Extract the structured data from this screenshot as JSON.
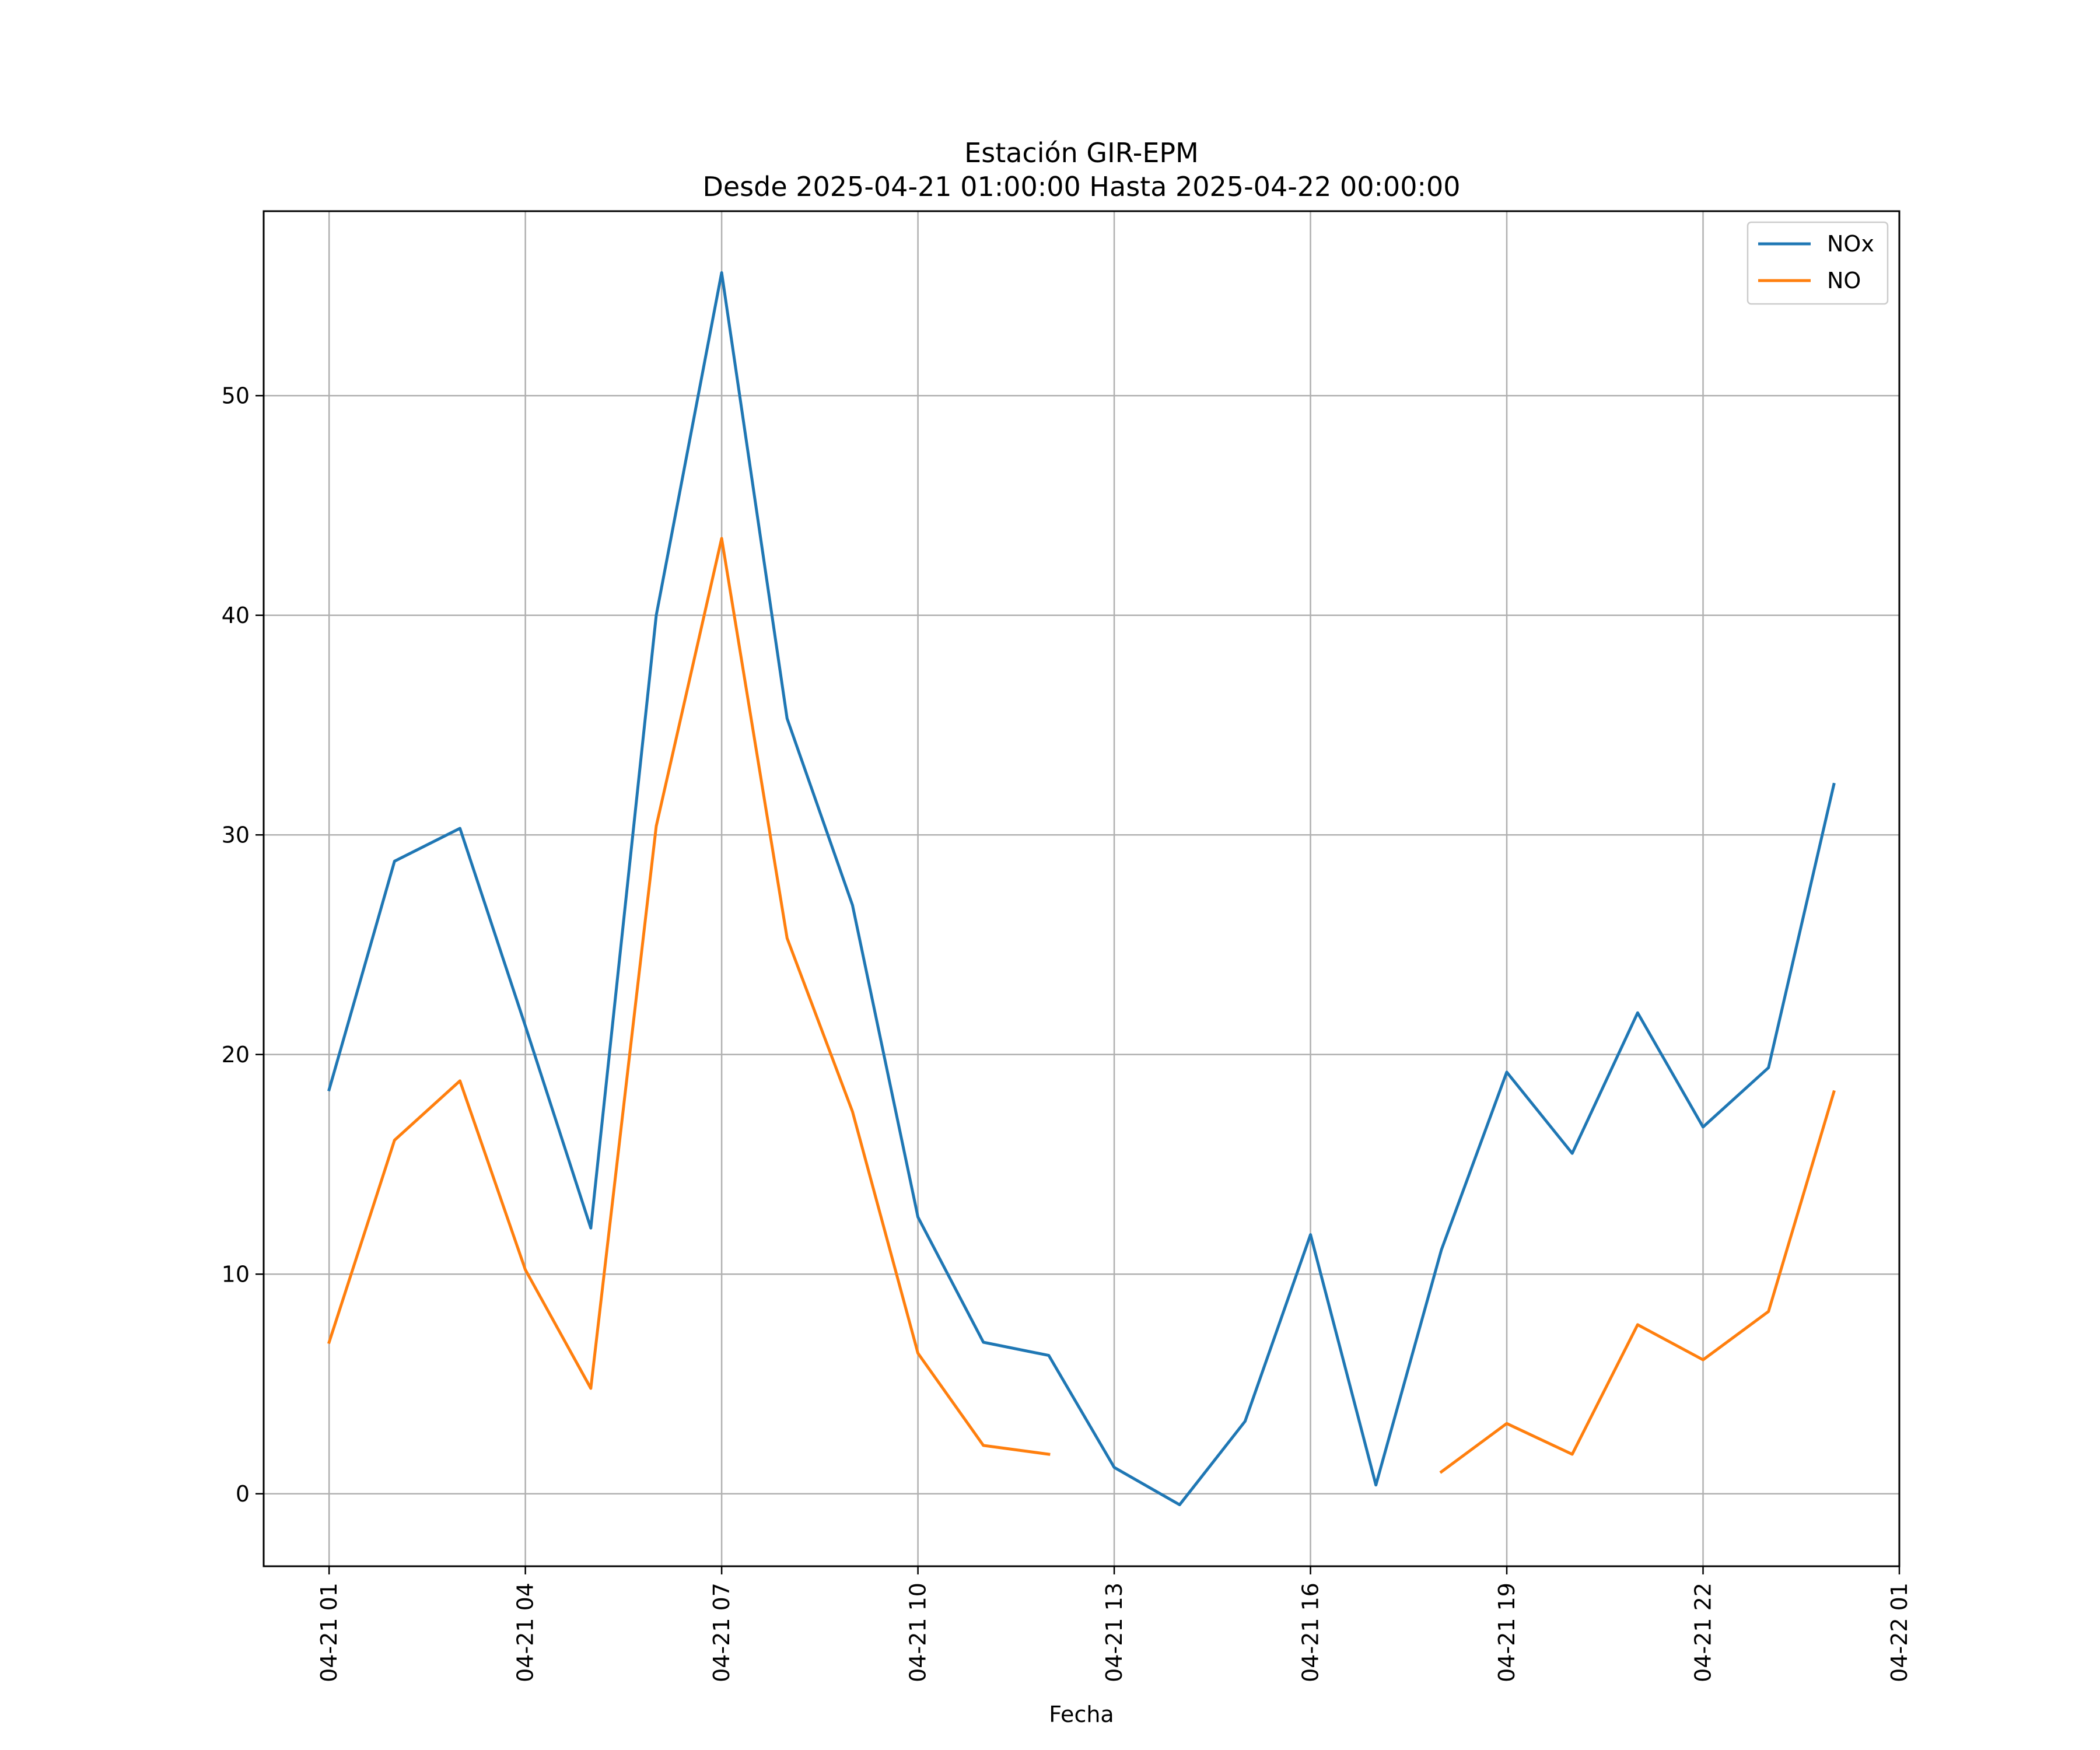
{
  "chart_data": {
    "type": "line",
    "title": [
      "Estación GIR-EPM",
      "Desde 2025-04-21 01:00:00 Hasta 2025-04-22 00:00:00"
    ],
    "xlabel": "Fecha",
    "ylabel": "",
    "x": [
      "04-21 01",
      "04-21 02",
      "04-21 03",
      "04-21 04",
      "04-21 05",
      "04-21 06",
      "04-21 07",
      "04-21 08",
      "04-21 09",
      "04-21 10",
      "04-21 11",
      "04-21 12",
      "04-21 13",
      "04-21 14",
      "04-21 15",
      "04-21 16",
      "04-21 17",
      "04-21 18",
      "04-21 19",
      "04-21 20",
      "04-21 21",
      "04-21 22",
      "04-21 23",
      "04-22 00"
    ],
    "xlim": [
      "04-21 00",
      "04-22 01"
    ],
    "ylim": [
      -3.3,
      58.4
    ],
    "xticks": [
      "04-21 01",
      "04-21 04",
      "04-21 07",
      "04-21 10",
      "04-21 13",
      "04-21 16",
      "04-21 19",
      "04-21 22",
      "04-22 01"
    ],
    "yticks": [
      0,
      10,
      20,
      30,
      40,
      50
    ],
    "grid": true,
    "legend_position": "top-right",
    "series": [
      {
        "name": "NOx",
        "color": "#1f77b4",
        "values": [
          18.4,
          28.8,
          30.3,
          21.3,
          12.1,
          40.0,
          55.6,
          35.3,
          26.8,
          12.6,
          6.9,
          6.3,
          1.2,
          -0.5,
          3.3,
          11.8,
          0.4,
          11.1,
          19.2,
          15.5,
          21.9,
          16.7,
          19.4,
          32.3
        ]
      },
      {
        "name": "NO",
        "color": "#ff7f0e",
        "values": [
          6.9,
          16.1,
          18.8,
          10.2,
          4.8,
          30.4,
          43.5,
          25.3,
          17.4,
          6.4,
          2.2,
          1.8,
          null,
          null,
          null,
          null,
          null,
          1.0,
          3.2,
          1.8,
          7.7,
          6.1,
          8.3,
          18.3
        ]
      }
    ]
  }
}
